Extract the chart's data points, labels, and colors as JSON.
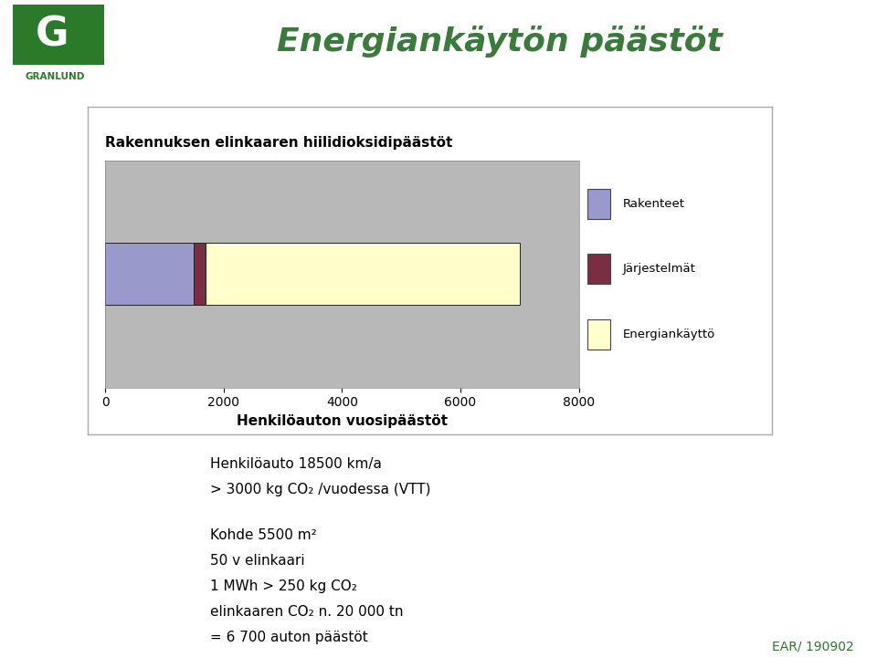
{
  "title": "Energiankäytön päästöt",
  "chart_title": "Rakennuksen elinkaaren hiilidioksidipäästöt",
  "xlabel": "Henkilöauton vuosipäästöt",
  "xlim": [
    0,
    8000
  ],
  "xticks": [
    0,
    2000,
    4000,
    6000,
    8000
  ],
  "segments": [
    {
      "label": "Rakenteet",
      "value": 1500,
      "color": "#9999cc"
    },
    {
      "label": "Järjestelmät",
      "value": 200,
      "color": "#7b2d42"
    },
    {
      "label": "Energiankäyttö",
      "value": 5300,
      "color": "#ffffcc"
    }
  ],
  "legend_labels": [
    "Rakenteet",
    "Järjestelmät",
    "Energiankäyttö"
  ],
  "legend_colors": [
    "#9999cc",
    "#7b2d42",
    "#ffffcc"
  ],
  "bg_color": "#ffffff",
  "chart_bg": "#b8b8b8",
  "annotation_text": [
    [
      "Henkilöauto 18500 km/a",
      false
    ],
    [
      "> 3000 kg CO",
      false
    ],
    [
      "",
      false
    ],
    [
      "Kohde 5500 m",
      false
    ],
    [
      "50 v elinkaari",
      false
    ],
    [
      "1 MWh > 250 kg CO",
      false
    ],
    [
      "elinkaaren CO",
      false
    ],
    [
      "= 6 700 auton päästöt",
      false
    ]
  ],
  "footer": "EAR/ 190902",
  "granlund_green": "#2a7a2a",
  "title_color": "#3a7a3a",
  "header_line_color": "#1a6b1a",
  "header_line2_color": "#004400"
}
